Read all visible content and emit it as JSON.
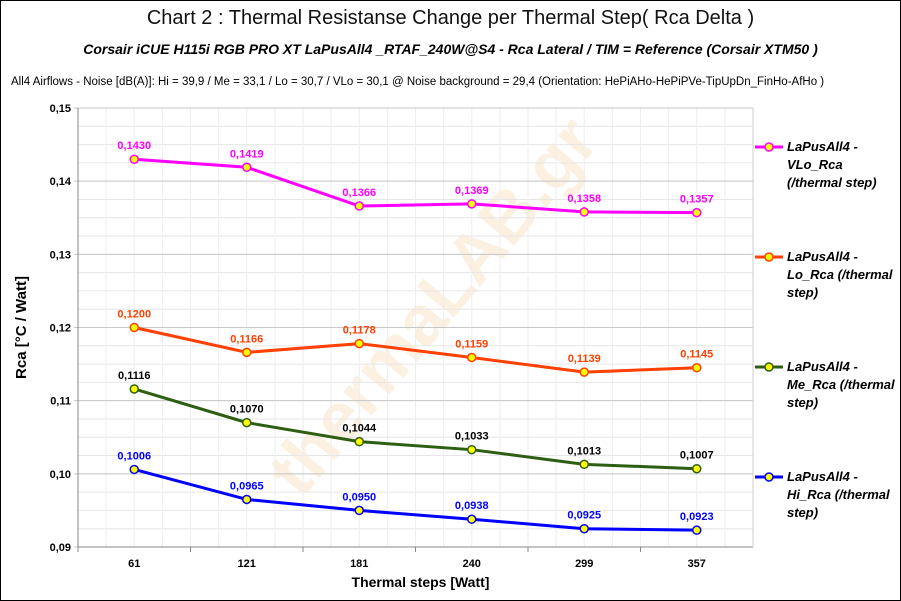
{
  "title": "Chart 2 :  Thermal Resistanse Change per Thermal Step( Rca  Delta )",
  "subtitle": "Corsair iCUE H115i RGB PRO XT  LaPusAll4 _RTAF_240W@S4  -  Rca Lateral    /  TIM =  Reference   (Corsair XTM50 )",
  "note": "All4  Airflows  -  Noise [dB(A)]: Hi = 39,9 / Me = 33,1 / Lo = 30,7 / VLo = 30,1 @ Noise background = 29,4    (Orientation: HePiAHo-HePiPVe-TipUpDn_FinHo-AfHo  )",
  "watermark": "thermaLAB.gr",
  "chart_data": {
    "type": "line",
    "xlabel": "Thermal steps  [Watt]",
    "ylabel": "Rca  [°C / Watt]",
    "categories": [
      "61",
      "121",
      "181",
      "240",
      "299",
      "357"
    ],
    "ylim": [
      0.09,
      0.15
    ],
    "yticks": [
      "0,09",
      "0,10",
      "0,11",
      "0,12",
      "0,13",
      "0,14",
      "0,15"
    ],
    "grid": true,
    "legend_position": "right",
    "series": [
      {
        "name": "LaPusAll4 - VLo_Rca (/thermal step)",
        "color": "#ff00ff",
        "values": [
          0.143,
          0.1419,
          0.1366,
          0.1369,
          0.1358,
          0.1357
        ],
        "labels": [
          "0,1430",
          "0,1419",
          "0,1366",
          "0,1369",
          "0,1358",
          "0,1357"
        ]
      },
      {
        "name": "LaPusAll4 - Lo_Rca (/thermal step)",
        "color": "#ff4000",
        "values": [
          0.12,
          0.1166,
          0.1178,
          0.1159,
          0.1139,
          0.1145
        ],
        "labels": [
          "0,1200",
          "0,1166",
          "0,1178",
          "0,1159",
          "0,1139",
          "0,1145"
        ]
      },
      {
        "name": "LaPusAll4 - Me_Rca (/thermal step)",
        "color": "#2e5e12",
        "labelColor": "#000000",
        "values": [
          0.1116,
          0.107,
          0.1044,
          0.1033,
          0.1013,
          0.1007
        ],
        "labels": [
          "0,1116",
          "0,1070",
          "0,1044",
          "0,1033",
          "0,1013",
          "0,1007"
        ]
      },
      {
        "name": "LaPusAll4 - Hi_Rca (/thermal step)",
        "color": "#0000ff",
        "values": [
          0.1006,
          0.0965,
          0.095,
          0.0938,
          0.0925,
          0.0923
        ],
        "labels": [
          "0,1006",
          "0,0965",
          "0,0950",
          "0,0938",
          "0,0925",
          "0,0923"
        ]
      }
    ]
  }
}
